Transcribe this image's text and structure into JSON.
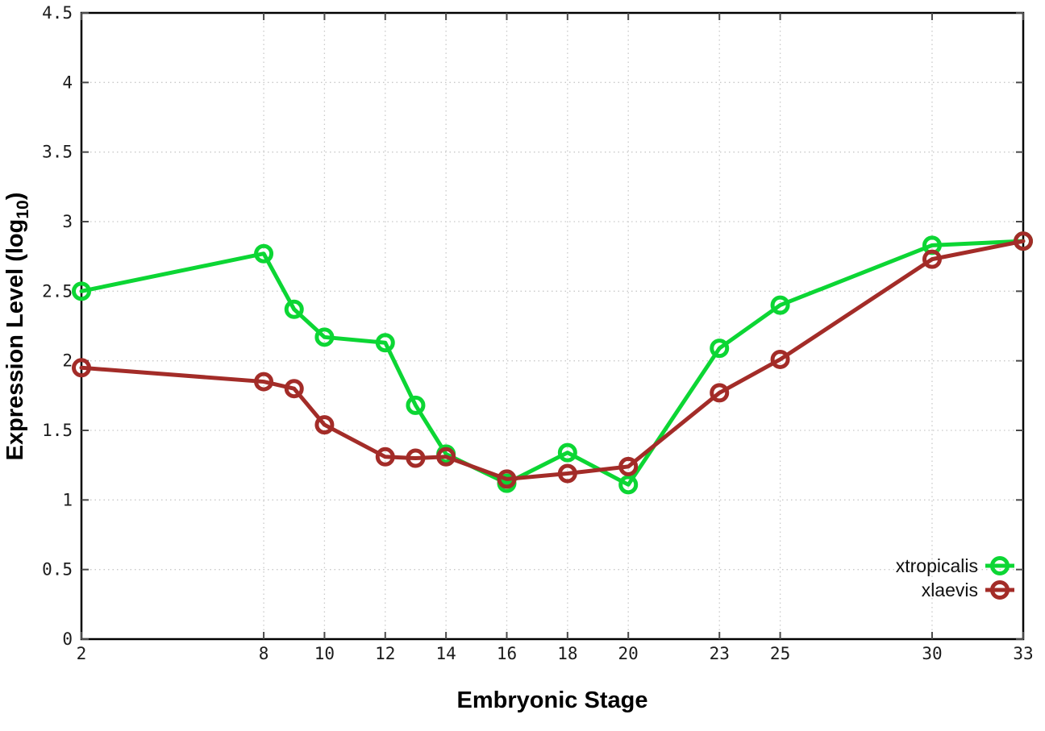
{
  "chart_data": {
    "type": "line",
    "title": "",
    "xlabel": "Embryonic Stage",
    "ylabel": "Expression Level (log10)",
    "ylabel_prefix": "Expression Level (log",
    "ylabel_sub": "10",
    "ylabel_close": ")",
    "xlim": [
      2,
      33
    ],
    "ylim": [
      0,
      4.5
    ],
    "xticks": [
      2,
      8,
      10,
      12,
      14,
      16,
      18,
      20,
      23,
      25,
      30,
      33
    ],
    "yticks": [
      0,
      0.5,
      1,
      1.5,
      2,
      2.5,
      3,
      3.5,
      4,
      4.5
    ],
    "grid": true,
    "grid_style": "dotted",
    "legend_position": "bottom-right",
    "colors": {
      "background": "#ffffff",
      "grid": "#c9c9c9",
      "axis": "#000000",
      "tick": "#4a4a4a",
      "xtropicalis": "#0cd634",
      "xlaevis": "#a32c28"
    },
    "series": [
      {
        "name": "xtropicalis",
        "color": "#0cd634",
        "marker": "open-circle",
        "stages": [
          2,
          8,
          9,
          10,
          12,
          13,
          14,
          16,
          18,
          20,
          23,
          25,
          30,
          33
        ],
        "values": [
          2.5,
          2.77,
          2.37,
          2.17,
          2.13,
          1.68,
          1.33,
          1.12,
          1.34,
          1.11,
          2.09,
          2.4,
          2.83,
          2.86
        ]
      },
      {
        "name": "xlaevis",
        "color": "#a32c28",
        "marker": "open-circle",
        "stages": [
          2,
          8,
          9,
          10,
          12,
          13,
          14,
          16,
          18,
          20,
          23,
          25,
          30,
          33
        ],
        "values": [
          1.95,
          1.85,
          1.8,
          1.54,
          1.31,
          1.3,
          1.31,
          1.15,
          1.19,
          1.24,
          1.77,
          2.01,
          2.73,
          2.86
        ]
      }
    ]
  }
}
